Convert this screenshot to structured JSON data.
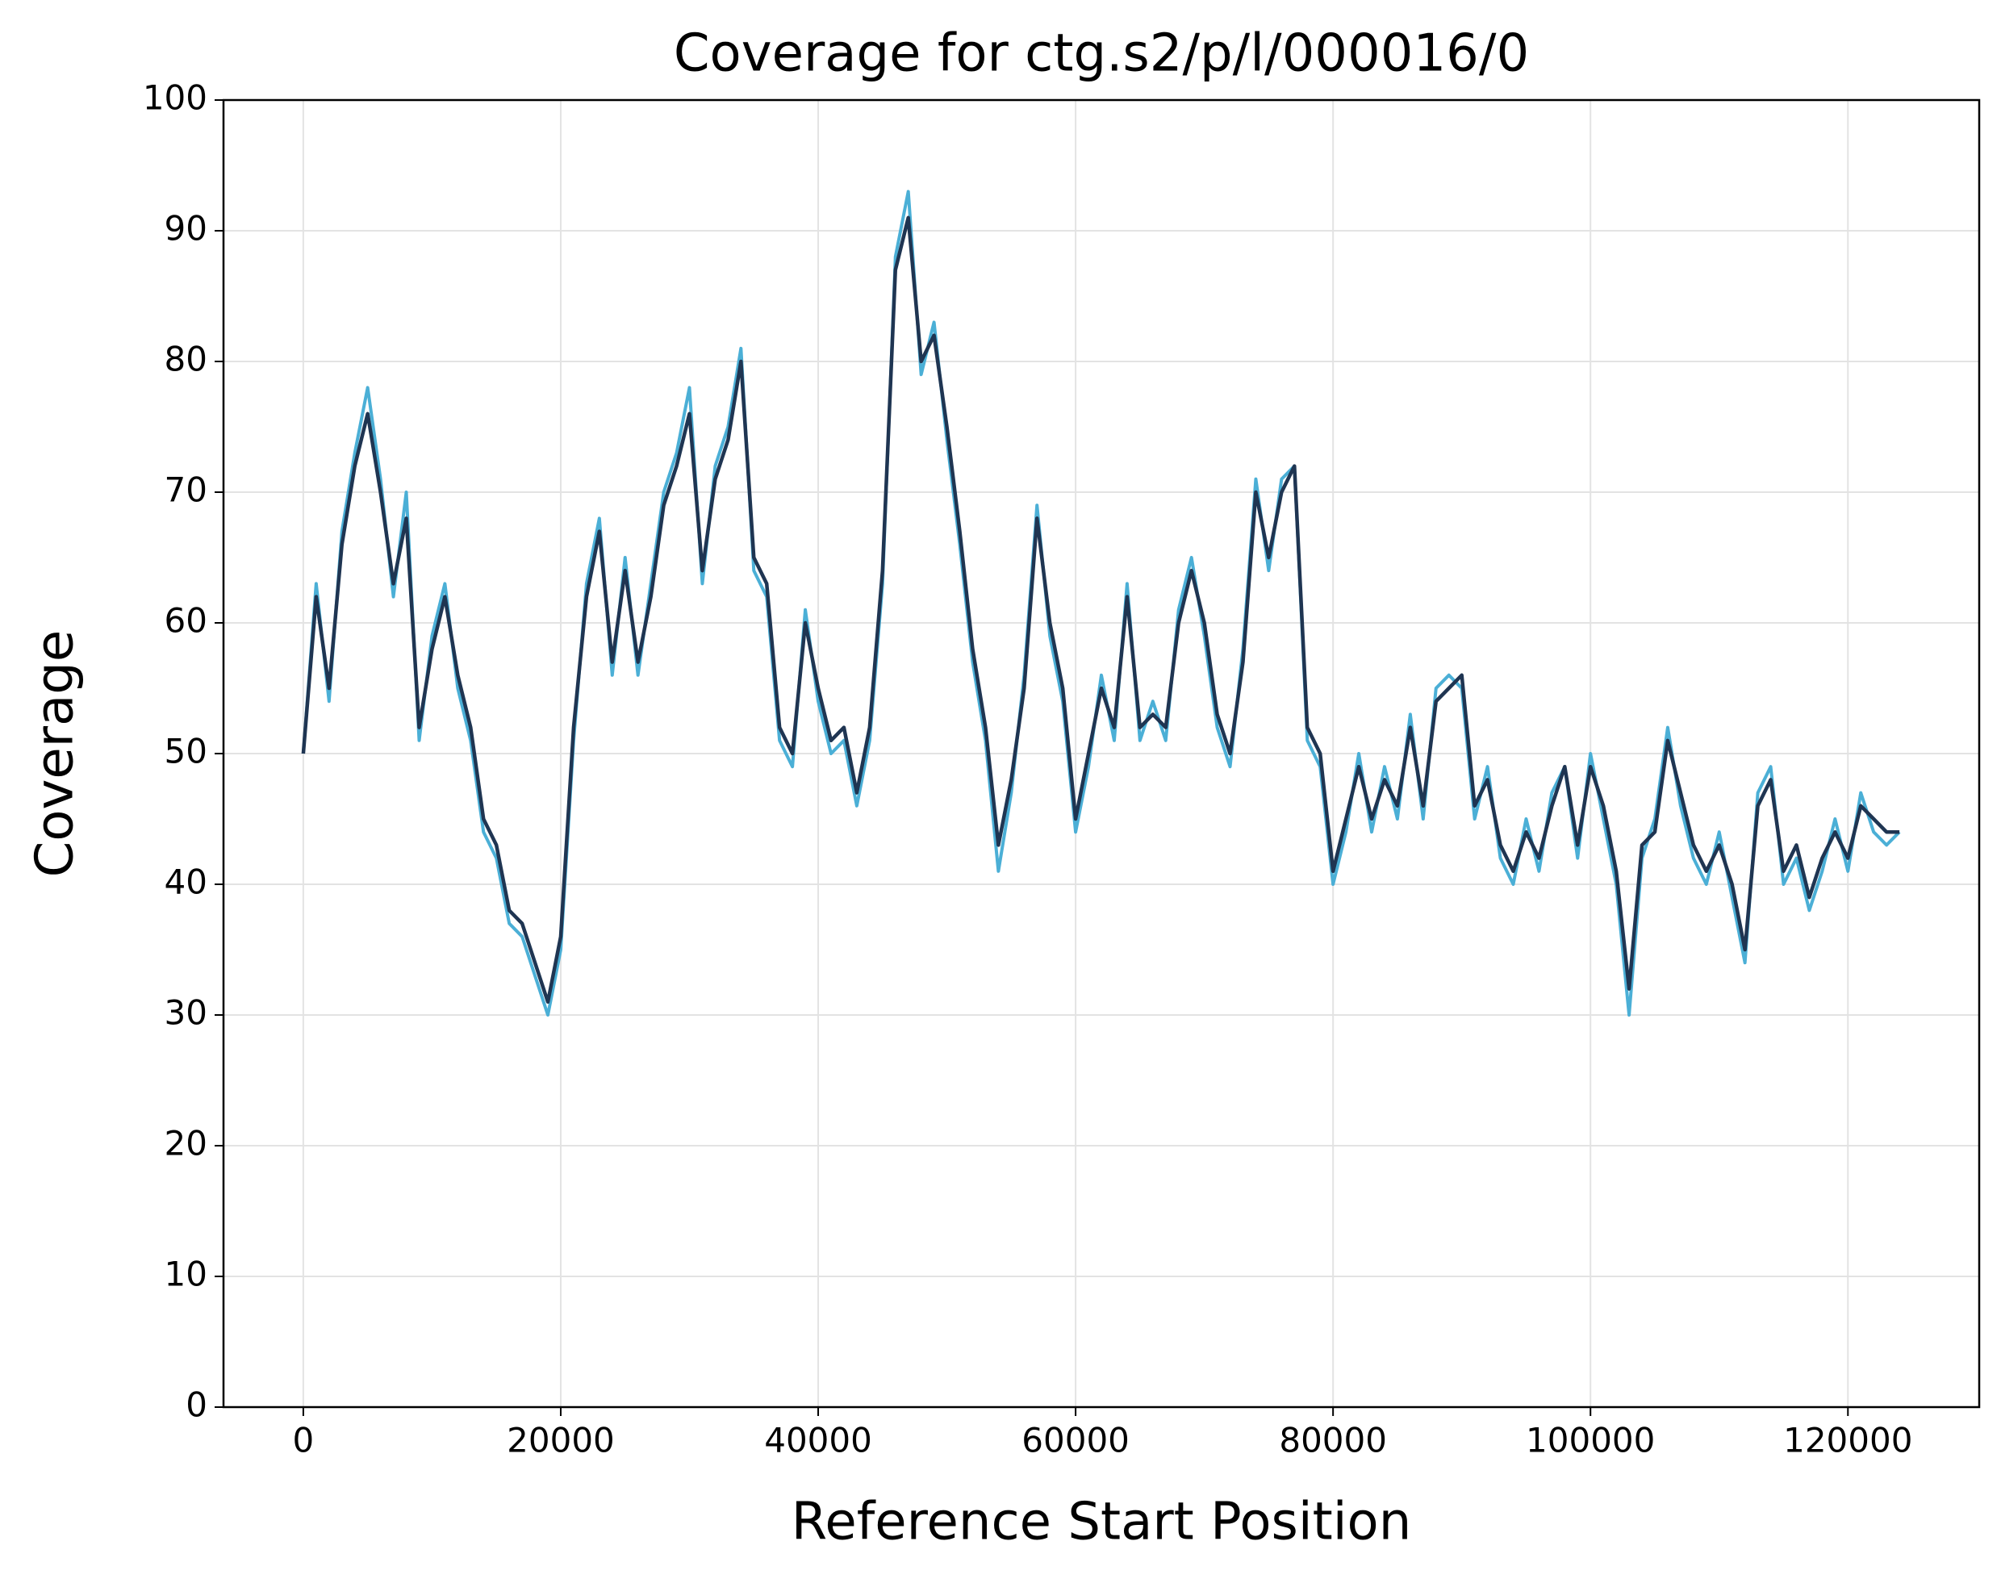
{
  "chart_data": {
    "type": "line",
    "title": "Coverage for ctg.s2/p/l/000016/0",
    "x_label": "Reference Start Position",
    "y_label": "Coverage",
    "x": [
      0,
      1000,
      2000,
      3000,
      4000,
      5000,
      6000,
      7000,
      8000,
      9000,
      10000,
      11000,
      12000,
      13000,
      14000,
      15000,
      16000,
      17000,
      18000,
      19000,
      20000,
      21000,
      22000,
      23000,
      24000,
      25000,
      26000,
      27000,
      28000,
      29000,
      30000,
      31000,
      32000,
      33000,
      34000,
      35000,
      36000,
      37000,
      38000,
      39000,
      40000,
      41000,
      42000,
      43000,
      44000,
      45000,
      46000,
      47000,
      48000,
      49000,
      50000,
      51000,
      52000,
      53000,
      54000,
      55000,
      56000,
      57000,
      58000,
      59000,
      60000,
      61000,
      62000,
      63000,
      64000,
      65000,
      66000,
      67000,
      68000,
      69000,
      70000,
      71000,
      72000,
      73000,
      74000,
      75000,
      76000,
      77000,
      78000,
      79000,
      80000,
      81000,
      82000,
      83000,
      84000,
      85000,
      86000,
      87000,
      88000,
      89000,
      90000,
      91000,
      92000,
      93000,
      94000,
      95000,
      96000,
      97000,
      98000,
      99000,
      100000,
      101000,
      102000,
      103000,
      104000,
      105000,
      106000,
      107000,
      108000,
      109000,
      110000,
      111000,
      112000,
      113000,
      114000,
      115000,
      116000,
      117000,
      118000,
      119000,
      120000,
      121000,
      122000,
      123000,
      124000
    ],
    "series": [
      {
        "color": "#4bafd6",
        "values": [
          50,
          63,
          54,
          67,
          73,
          78,
          71,
          62,
          70,
          51,
          59,
          63,
          55,
          51,
          44,
          42,
          37,
          36,
          33,
          30,
          35,
          51,
          63,
          68,
          56,
          65,
          56,
          63,
          70,
          73,
          78,
          63,
          72,
          75,
          81,
          64,
          62,
          51,
          49,
          61,
          54,
          50,
          51,
          46,
          51,
          63,
          88,
          93,
          79,
          83,
          74,
          66,
          57,
          51,
          41,
          47,
          56,
          69,
          59,
          54,
          44,
          49,
          56,
          51,
          63,
          51,
          54,
          51,
          61,
          65,
          59,
          52,
          49,
          58,
          71,
          64,
          71,
          72,
          51,
          49,
          40,
          44,
          50,
          44,
          49,
          45,
          53,
          45,
          55,
          56,
          55,
          45,
          49,
          42,
          40,
          45,
          41,
          47,
          49,
          42,
          50,
          45,
          40,
          30,
          42,
          45,
          52,
          46,
          42,
          40,
          44,
          39,
          34,
          47,
          49,
          40,
          42,
          38,
          41,
          45,
          41,
          47,
          44,
          43,
          44
        ]
      },
      {
        "color": "#1f3552",
        "values": [
          50,
          62,
          55,
          66,
          72,
          76,
          70,
          63,
          68,
          52,
          58,
          62,
          56,
          52,
          45,
          43,
          38,
          37,
          34,
          31,
          36,
          52,
          62,
          67,
          57,
          64,
          57,
          62,
          69,
          72,
          76,
          64,
          71,
          74,
          80,
          65,
          63,
          52,
          50,
          60,
          55,
          51,
          52,
          47,
          52,
          64,
          87,
          91,
          80,
          82,
          75,
          67,
          58,
          52,
          43,
          48,
          55,
          68,
          60,
          55,
          45,
          50,
          55,
          52,
          62,
          52,
          53,
          52,
          60,
          64,
          60,
          53,
          50,
          57,
          70,
          65,
          70,
          72,
          52,
          50,
          41,
          45,
          49,
          45,
          48,
          46,
          52,
          46,
          54,
          55,
          56,
          46,
          48,
          43,
          41,
          44,
          42,
          46,
          49,
          43,
          49,
          46,
          41,
          32,
          43,
          44,
          51,
          47,
          43,
          41,
          43,
          40,
          35,
          46,
          48,
          41,
          43,
          39,
          42,
          44,
          42,
          46,
          45,
          44,
          44
        ]
      }
    ],
    "xlim": [
      -6200,
      130200
    ],
    "ylim": [
      0,
      100
    ],
    "xticks": [
      0,
      20000,
      40000,
      60000,
      80000,
      100000,
      120000
    ],
    "yticks": [
      0,
      10,
      20,
      30,
      40,
      50,
      60,
      70,
      80,
      90,
      100
    ],
    "grid": true
  }
}
